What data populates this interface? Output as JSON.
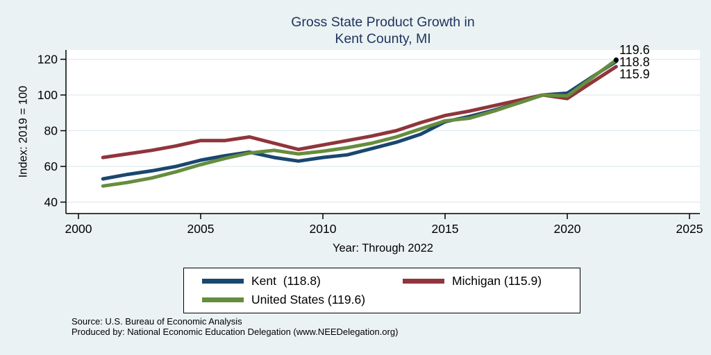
{
  "title": {
    "line1": "Gross State Product Growth in",
    "line2": "Kent County, MI"
  },
  "colors": {
    "background": "#eaf2f3",
    "plot_background": "#ffffff",
    "grid": "#dfeaee",
    "axis": "#000000",
    "title_text": "#20335f"
  },
  "chart_data": {
    "type": "line",
    "title": "Gross State Product Growth in Kent County, MI",
    "xlabel": "Year: Through 2022",
    "ylabel": "Index: 2019 = 100",
    "xlim": [
      2000,
      2025
    ],
    "ylim": [
      40,
      120
    ],
    "xticks": [
      2000,
      2005,
      2010,
      2015,
      2020,
      2025
    ],
    "yticks": [
      40,
      60,
      80,
      100,
      120
    ],
    "grid": true,
    "legend_position": "bottom",
    "x": [
      2001,
      2002,
      2003,
      2004,
      2005,
      2006,
      2007,
      2008,
      2009,
      2010,
      2011,
      2012,
      2013,
      2014,
      2015,
      2016,
      2017,
      2018,
      2019,
      2020,
      2021,
      2022
    ],
    "series": [
      {
        "name": "Kent",
        "legend_label": "Kent  (118.8)",
        "color": "#1a476f",
        "end_label": "118.8",
        "values": [
          53,
          55.5,
          57.5,
          60,
          63.5,
          66,
          68,
          65,
          63,
          65,
          66.5,
          70,
          73.5,
          78,
          85,
          88,
          91.5,
          95.5,
          100,
          101,
          110,
          118.8
        ]
      },
      {
        "name": "Michigan",
        "legend_label": "Michigan (115.9)",
        "color": "#90353b",
        "end_label": "115.9",
        "values": [
          65,
          67,
          69,
          71.5,
          74.5,
          74.5,
          76.5,
          73,
          69.5,
          72,
          74.5,
          77,
          80,
          84.5,
          88.5,
          91,
          94,
          97,
          100,
          98,
          107,
          115.9
        ]
      },
      {
        "name": "United States",
        "legend_label": "United States (119.6)",
        "color": "#668d3e",
        "end_label": "119.6",
        "values": [
          49,
          51,
          53.5,
          57,
          61,
          64.5,
          67.5,
          69,
          67,
          68.5,
          70.5,
          73,
          76.5,
          81,
          85.5,
          87,
          91,
          95.5,
          100,
          99.5,
          109.5,
          119.6
        ]
      }
    ],
    "end_dot_series": "United States"
  },
  "footer": {
    "source": "Source: U.S. Bureau of Economic Analysis",
    "produced_by": "Produced by: National Economic Education Delegation (www.NEEDelegation.org)"
  }
}
